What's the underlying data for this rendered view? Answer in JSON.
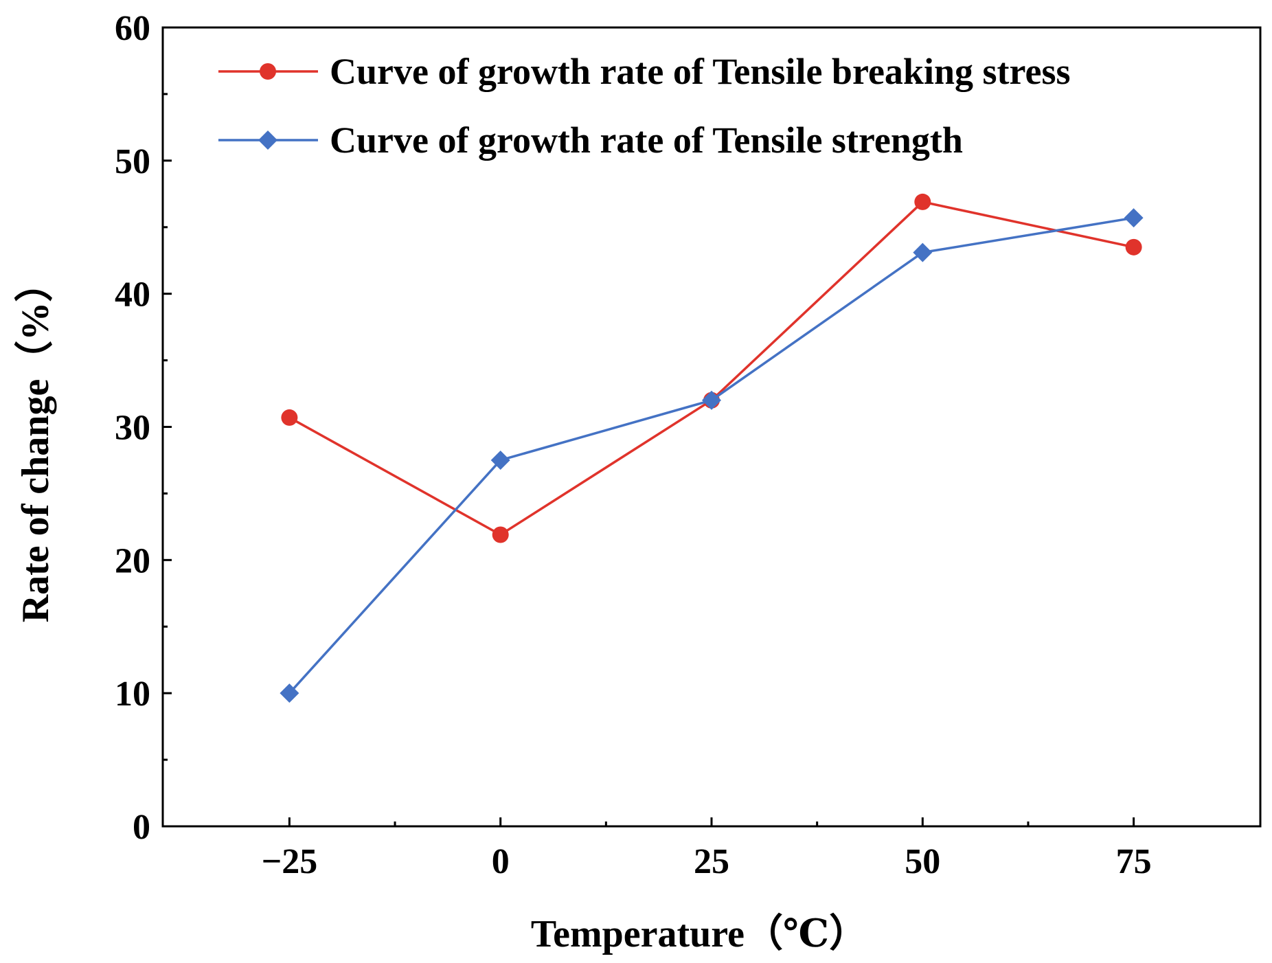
{
  "chart_data": {
    "type": "line",
    "title": "",
    "xlabel": "Temperature（℃）",
    "ylabel": "Rate of change（%）",
    "x": [
      -25,
      0,
      25,
      50,
      75
    ],
    "x_tick_labels": [
      "−25",
      "0",
      "25",
      "50",
      "75"
    ],
    "y_ticks": [
      0,
      10,
      20,
      30,
      40,
      50,
      60
    ],
    "y_tick_labels": [
      "0",
      "10",
      "20",
      "30",
      "40",
      "50",
      "60"
    ],
    "xlim": [
      -40,
      90
    ],
    "ylim": [
      0,
      60
    ],
    "grid": false,
    "legend_position": "top-left",
    "series": [
      {
        "name": "Curve of growth rate of Tensile breaking stress",
        "color": "#e0332b",
        "marker": "circle",
        "values": [
          30.7,
          21.9,
          32.0,
          46.9,
          43.5
        ]
      },
      {
        "name": "Curve of growth rate of Tensile strength",
        "color": "#4472c4",
        "marker": "diamond",
        "values": [
          10.0,
          27.5,
          32.0,
          43.1,
          45.7
        ]
      }
    ]
  }
}
